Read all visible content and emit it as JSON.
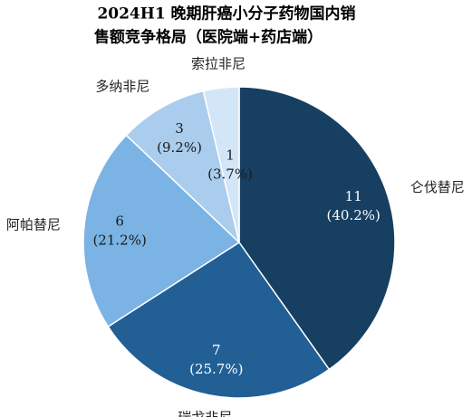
{
  "chart_data": {
    "type": "pie",
    "title": [
      "2024H1 晚期肝癌小分子药物国内销",
      "售额竞争格局（医院端+药店端）"
    ],
    "categories": [
      "仑伐替尼",
      "瑞戈非尼",
      "阿帕替尼",
      "多纳非尼",
      "索拉非尼"
    ],
    "values": [
      11,
      7,
      6,
      3,
      1
    ],
    "percents": [
      40.2,
      25.7,
      21.2,
      9.2,
      3.7
    ],
    "percent_labels": [
      "(40.2%)",
      "(25.7%)",
      "(21.2%)",
      "(9.2%)",
      "(3.7%)"
    ],
    "colors": [
      "#173f61",
      "#215f95",
      "#7ab3e4",
      "#aacdee",
      "#d3e6f7"
    ],
    "label_colors": [
      "#ffffff",
      "#ffffff",
      "#1a1a1a",
      "#1a1a1a",
      "#1a1a1a"
    ]
  }
}
